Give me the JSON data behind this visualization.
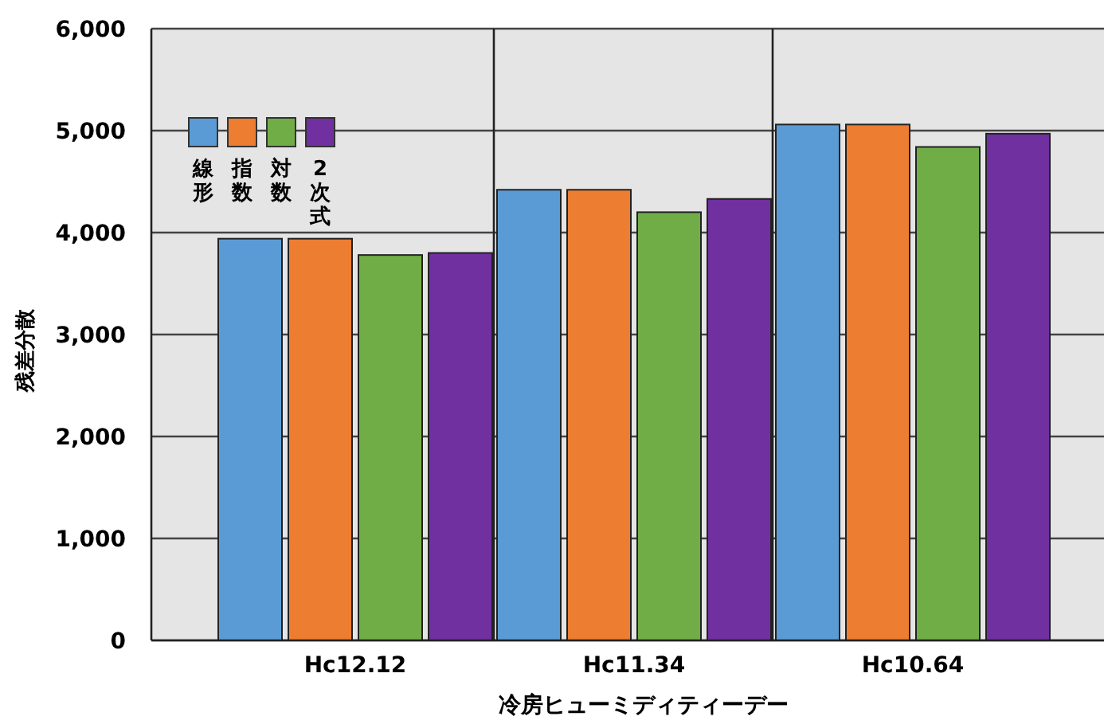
{
  "chart_data": {
    "type": "bar",
    "xlabel": "冷房ヒューミディティーデー",
    "ylabel": "残差分散",
    "categories": [
      "Hc12.12",
      "Hc11.34",
      "Hc10.64"
    ],
    "series": [
      {
        "name": "線形",
        "color": "#5b9bd5",
        "values": [
          3940,
          4420,
          5060
        ]
      },
      {
        "name": "指数",
        "color": "#ed7d31",
        "values": [
          3940,
          4420,
          5060
        ]
      },
      {
        "name": "対数",
        "color": "#70ad47",
        "values": [
          3780,
          4200,
          4840
        ]
      },
      {
        "name": "2次式",
        "color": "#7030a0",
        "values": [
          3800,
          4330,
          4970
        ]
      }
    ],
    "ylim": [
      0,
      6000
    ],
    "yticks": [
      {
        "value": 0,
        "label": "0"
      },
      {
        "value": 1000,
        "label": "1,000"
      },
      {
        "value": 2000,
        "label": "2,000"
      },
      {
        "value": 3000,
        "label": "3,000"
      },
      {
        "value": 4000,
        "label": "4,000"
      },
      {
        "value": 5000,
        "label": "5,000"
      },
      {
        "value": 6000,
        "label": "6,000"
      }
    ],
    "grid": true,
    "legend": "top left"
  }
}
